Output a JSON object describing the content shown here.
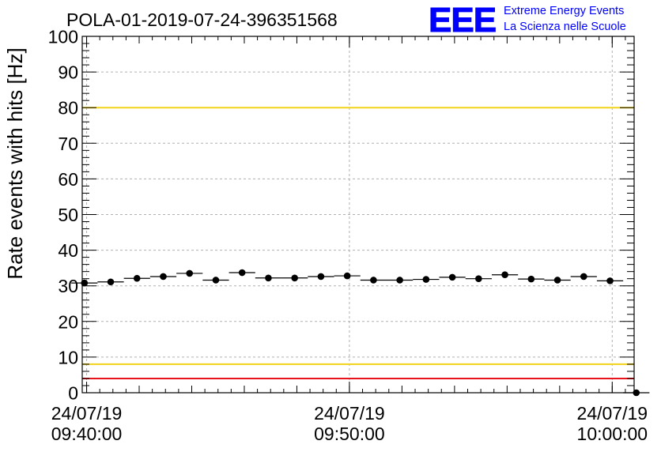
{
  "chart_data": {
    "type": "scatter",
    "title": "POLA-01-2019-07-24-396351568",
    "ylabel": "Rate events with hits [Hz]",
    "xlabel": "",
    "ylim": [
      0,
      100
    ],
    "yticks": [
      0,
      10,
      20,
      30,
      40,
      50,
      60,
      70,
      80,
      90,
      100
    ],
    "grid": true,
    "x_axis": {
      "type": "time",
      "range": [
        "2019-07-24 09:39:50",
        "2019-07-24 10:00:50"
      ],
      "major_ticks": [
        {
          "date": "24/07/19",
          "time": "09:40:00"
        },
        {
          "date": "24/07/19",
          "time": "09:50:00"
        },
        {
          "date": "24/07/19",
          "time": "10:00:00"
        }
      ]
    },
    "reference_lines": [
      {
        "y": 80,
        "color": "#f2d21b"
      },
      {
        "y": 8,
        "color": "#f2d21b"
      },
      {
        "y": 4,
        "color": "#e8141b"
      }
    ],
    "points": {
      "x": [
        "09:39:55",
        "09:40:55",
        "09:41:55",
        "09:42:55",
        "09:43:55",
        "09:44:55",
        "09:45:55",
        "09:46:55",
        "09:47:55",
        "09:48:55",
        "09:49:55",
        "09:50:55",
        "09:51:55",
        "09:52:55",
        "09:53:55",
        "09:54:55",
        "09:55:55",
        "09:56:55",
        "09:57:55",
        "09:58:55",
        "09:59:55",
        "10:00:55"
      ],
      "y": [
        30.8,
        31.1,
        32.1,
        32.6,
        33.5,
        31.6,
        33.7,
        32.2,
        32.2,
        32.6,
        32.8,
        31.6,
        31.6,
        31.8,
        32.4,
        32.0,
        33.1,
        31.9,
        31.6,
        32.6,
        31.4,
        0
      ],
      "x_error_seconds": 30
    },
    "logo": {
      "text": "EEE",
      "line1": "Extreme Energy Events",
      "line2": "La Scienza nelle Scuole",
      "color": "#0000ff"
    }
  }
}
